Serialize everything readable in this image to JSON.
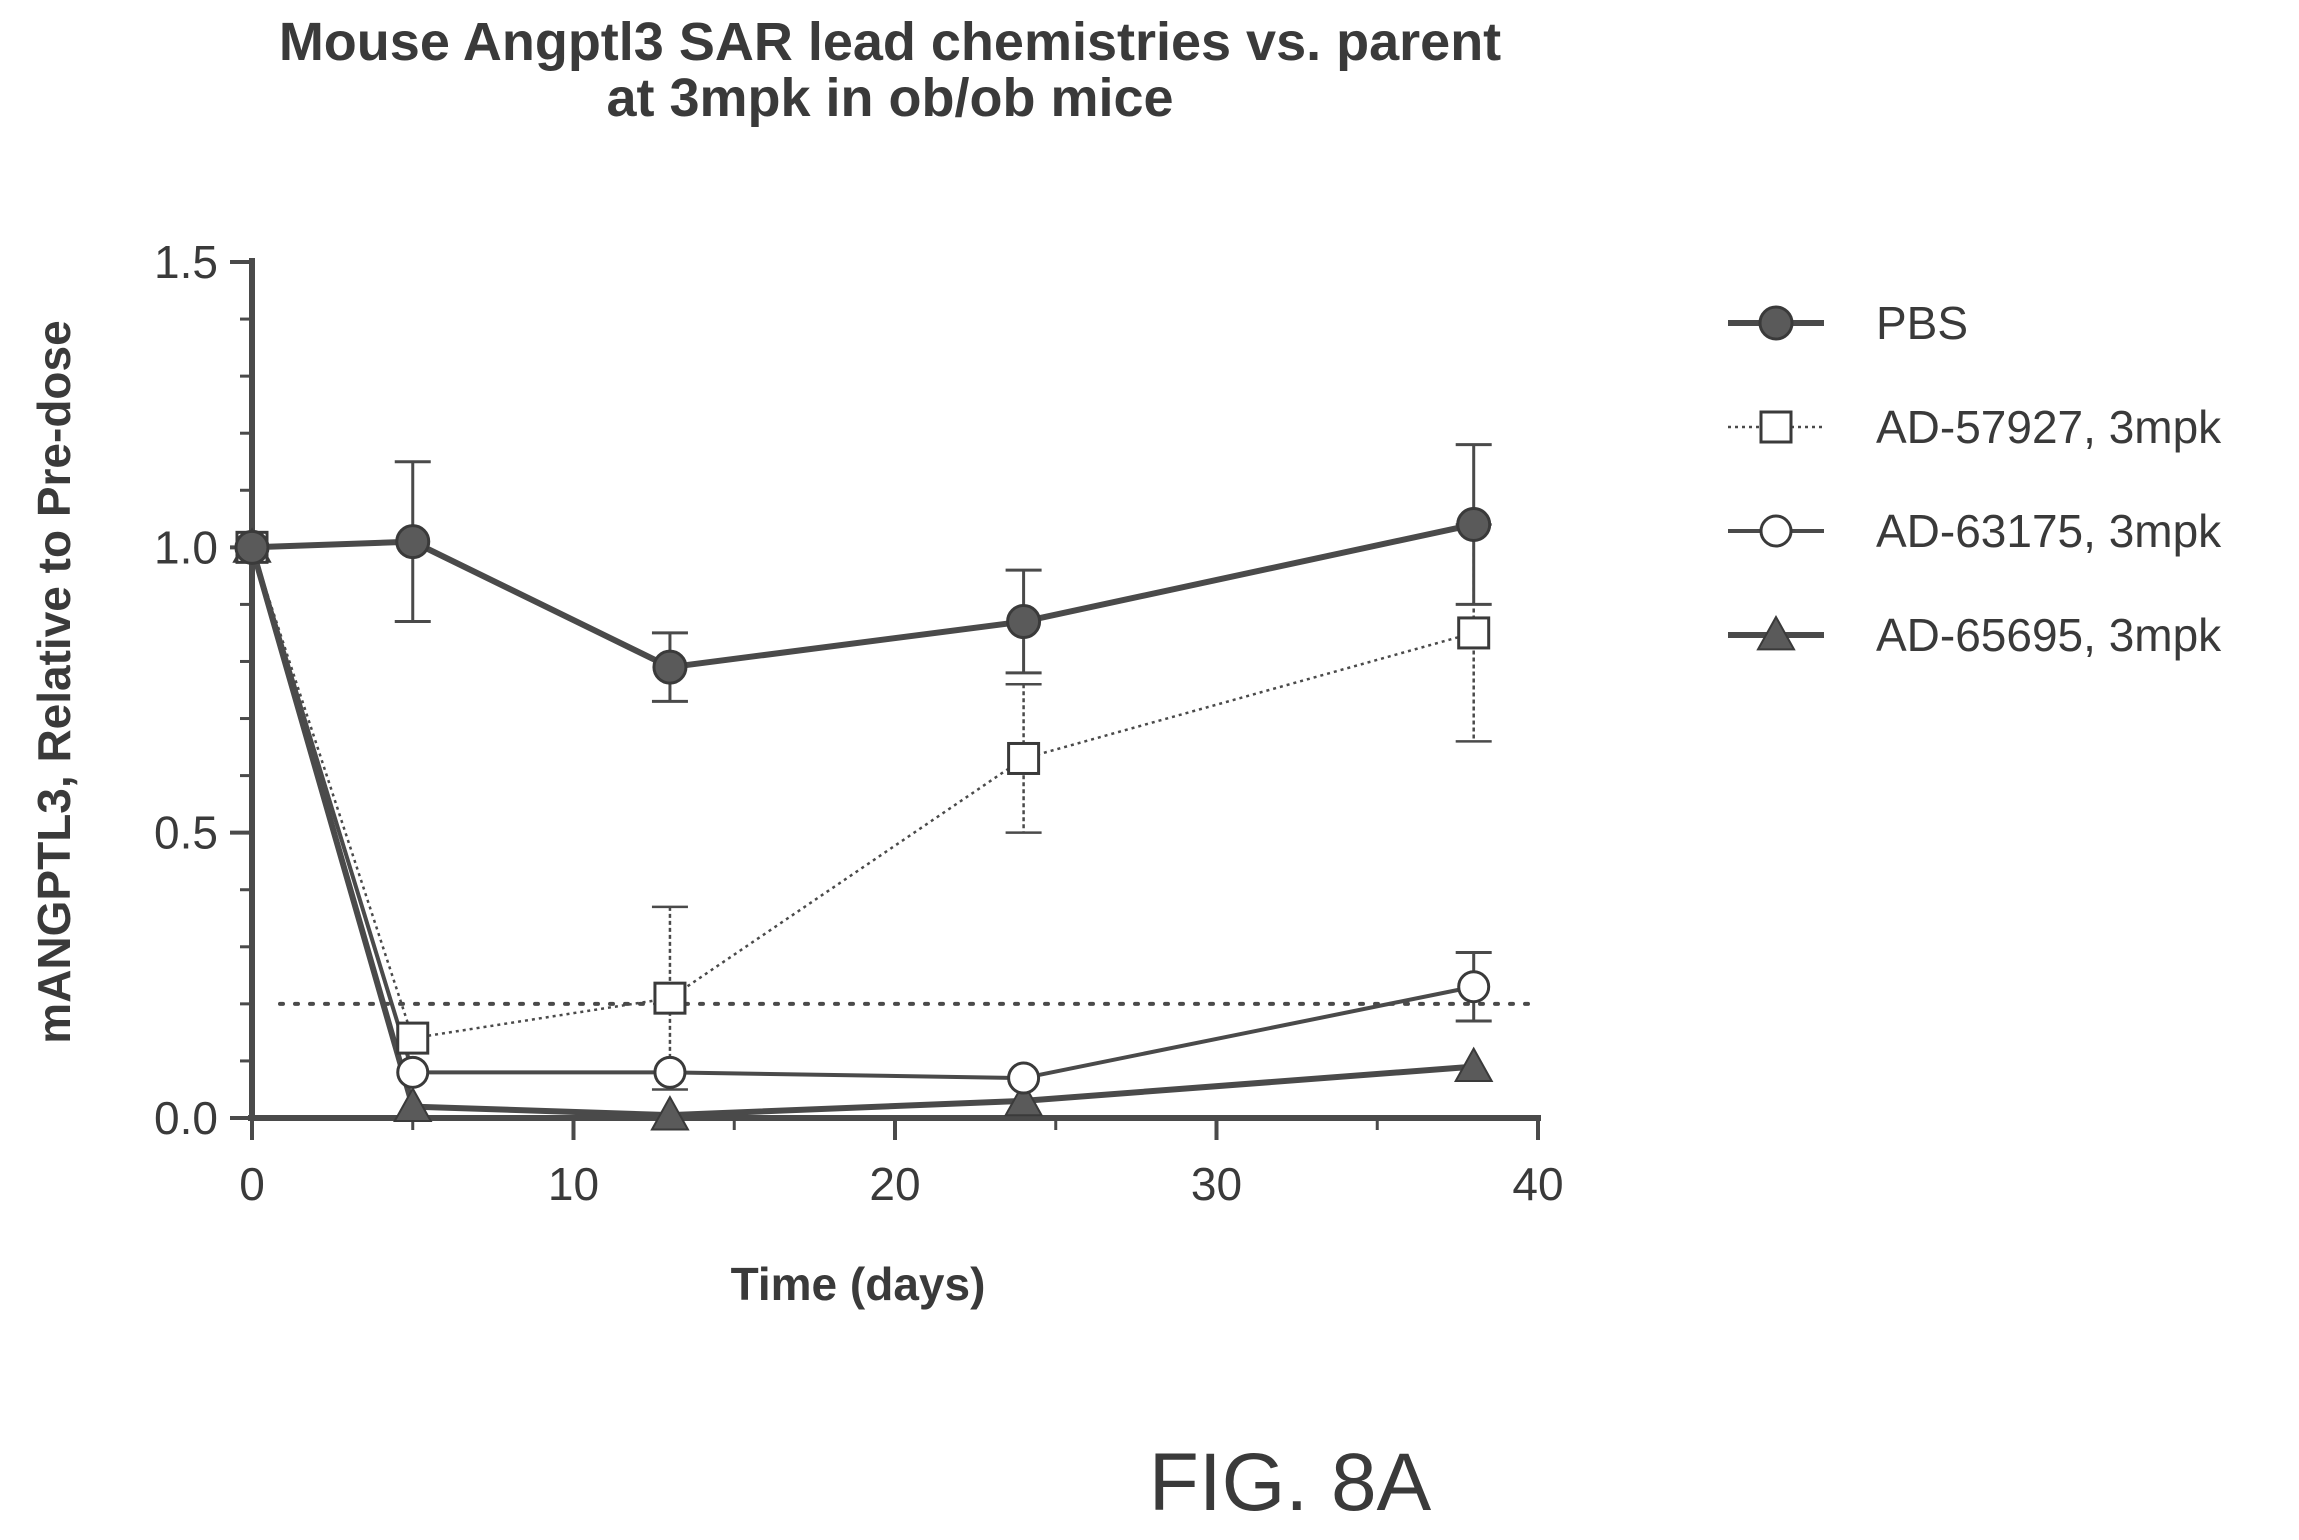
{
  "figure_label": "FIG. 8A",
  "chart_data": {
    "type": "line",
    "title_line1": "Mouse  Angptl3 SAR lead chemistries vs. parent",
    "title_line2": "at 3mpk in ob/ob mice",
    "xlabel": "Time (days)",
    "ylabel": "mANGPTL3,  Relative to  Pre-dose",
    "xlim": [
      0,
      40
    ],
    "ylim": [
      0,
      1.5
    ],
    "x_ticks": [
      0,
      10,
      20,
      30,
      40
    ],
    "x_tick_labels": [
      "0",
      "10",
      "20",
      "30",
      "40"
    ],
    "y_ticks": [
      0,
      0.5,
      1.0,
      1.5
    ],
    "y_tick_labels": [
      "0.0",
      "0.5",
      "1.0",
      "1.5"
    ],
    "reference_line_y": 0.2,
    "legend_position": "right",
    "grid": false,
    "series": [
      {
        "name": "PBS",
        "marker": "filled-circle",
        "line_style": "solid-bold",
        "color": "#555555",
        "x": [
          0,
          5,
          13,
          24,
          38
        ],
        "values": [
          1.0,
          1.01,
          0.79,
          0.87,
          1.04
        ],
        "error": [
          0.0,
          0.14,
          0.06,
          0.09,
          0.14
        ]
      },
      {
        "name": "AD-57927, 3mpk",
        "marker": "open-square",
        "line_style": "dotted-thin",
        "color": "#555555",
        "x": [
          0,
          5,
          13,
          24,
          38
        ],
        "values": [
          1.0,
          0.14,
          0.21,
          0.63,
          0.85
        ],
        "error": [
          0.0,
          0.0,
          0.16,
          0.13,
          0.19
        ]
      },
      {
        "name": "AD-63175, 3mpk",
        "marker": "open-circle",
        "line_style": "solid",
        "color": "#555555",
        "x": [
          0,
          5,
          13,
          24,
          38
        ],
        "values": [
          1.0,
          0.08,
          0.08,
          0.07,
          0.23
        ],
        "error": [
          0.0,
          0.0,
          0.0,
          0.0,
          0.06
        ]
      },
      {
        "name": "AD-65695, 3mpk",
        "marker": "filled-triangle",
        "line_style": "solid-bold",
        "color": "#555555",
        "x": [
          0,
          5,
          13,
          24,
          38
        ],
        "values": [
          1.0,
          0.02,
          0.005,
          0.03,
          0.09
        ],
        "error": [
          0.0,
          0.0,
          0.0,
          0.0,
          0.0
        ]
      }
    ]
  }
}
